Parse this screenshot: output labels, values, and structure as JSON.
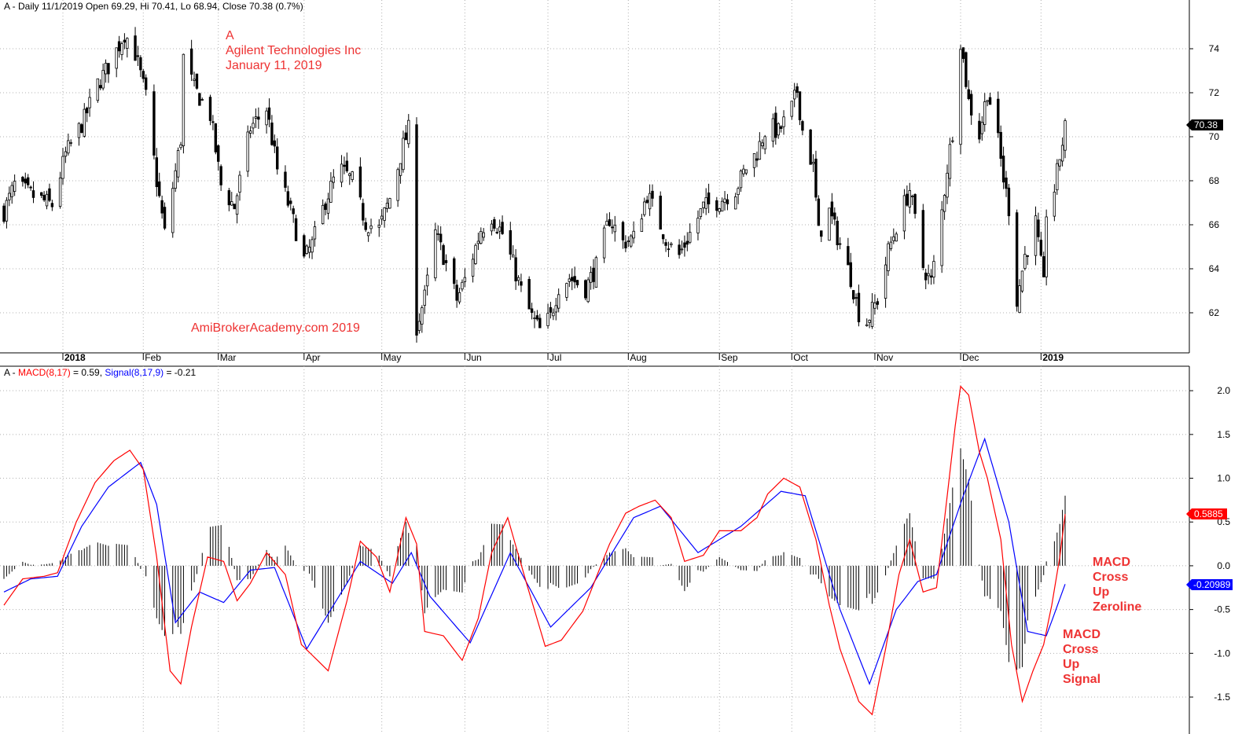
{
  "price_panel": {
    "ticker": "A",
    "header_prefix": "A - Daily 11/1/2019 Open 69.29, Hi 70.41, Lo 68.94, Close 70.38 (0.7%)",
    "annotation_lines": [
      "A",
      "Agilent Technologies Inc",
      "January 11, 2019"
    ],
    "watermark": "AmiBrokerAcademy.com  2019",
    "last_close_tag": "70.38",
    "y_ticks": [
      "74",
      "72",
      "70",
      "68",
      "66",
      "64",
      "62"
    ]
  },
  "x_axis": {
    "labels": [
      "2018",
      "Feb",
      "Mar",
      "Apr",
      "May",
      "Jun",
      "Jul",
      "Aug",
      "Sep",
      "Oct",
      "Nov",
      "Dec",
      "2019"
    ]
  },
  "macd_panel": {
    "header_prefix": "A - ",
    "macd_label": "MACD(8,17)",
    "macd_value_text": " = 0.59, ",
    "signal_label": "Signal(8,17,9)",
    "signal_value_text": " = -0.21",
    "macd_tag": "0.5885",
    "signal_tag": "-0.20989",
    "y_ticks": [
      "2.0",
      "1.5",
      "1.0",
      "0.5",
      "0.0",
      "-0.5",
      "-1.0",
      "-1.5"
    ],
    "annotation_zeroline": [
      "MACD",
      "Cross",
      "Up",
      "Zeroline"
    ],
    "annotation_signal": [
      "MACD",
      "Cross",
      "Up",
      "Signal"
    ]
  },
  "colors": {
    "macd": "#ff0000",
    "signal": "#0000ff",
    "histogram": "#000000",
    "candles": "#000000",
    "annotation": "#ee3333",
    "grid": "#b0b0b0"
  },
  "chart_data": [
    {
      "type": "candlestick",
      "title": "A - Daily 11/1/2019 Open 69.29, Hi 70.41, Lo 68.94, Close 70.38 (0.7%)",
      "x_labels": [
        "2018",
        "Feb",
        "Mar",
        "Apr",
        "May",
        "Jun",
        "Jul",
        "Aug",
        "Sep",
        "Oct",
        "Nov",
        "Dec",
        "2019"
      ],
      "ylim": [
        60.5,
        75.5
      ],
      "y_ticks": [
        62,
        64,
        66,
        68,
        70,
        72,
        74
      ],
      "x_start": "2017-12-11",
      "x_end": "2019-01-11",
      "grid": true,
      "close_path": [
        {
          "date": "2017-12-11",
          "close": 66.6
        },
        {
          "date": "2017-12-15",
          "close": 67.8
        },
        {
          "date": "2017-12-22",
          "close": 67.3
        },
        {
          "date": "2017-12-29",
          "close": 66.9
        },
        {
          "date": "2018-01-03",
          "close": 69.2
        },
        {
          "date": "2018-01-10",
          "close": 70.8
        },
        {
          "date": "2018-01-15",
          "close": 72.4
        },
        {
          "date": "2018-01-20",
          "close": 73.4
        },
        {
          "date": "2018-01-25",
          "close": 74.7
        },
        {
          "date": "2018-01-29",
          "close": 73.8
        },
        {
          "date": "2018-02-02",
          "close": 71.8
        },
        {
          "date": "2018-02-06",
          "close": 68.0
        },
        {
          "date": "2018-02-09",
          "close": 65.6
        },
        {
          "date": "2018-02-13",
          "close": 68.4
        },
        {
          "date": "2018-02-15",
          "close": 69.9
        },
        {
          "date": "2018-02-16",
          "close": 73.6
        },
        {
          "date": "2018-02-20",
          "close": 72.2
        },
        {
          "date": "2018-02-26",
          "close": 71.0
        },
        {
          "date": "2018-03-02",
          "close": 67.8
        },
        {
          "date": "2018-03-07",
          "close": 66.8
        },
        {
          "date": "2018-03-13",
          "close": 70.4
        },
        {
          "date": "2018-03-19",
          "close": 71.3
        },
        {
          "date": "2018-03-23",
          "close": 68.5
        },
        {
          "date": "2018-03-28",
          "close": 66.6
        },
        {
          "date": "2018-04-02",
          "close": 64.4
        },
        {
          "date": "2018-04-05",
          "close": 65.1
        },
        {
          "date": "2018-04-10",
          "close": 67.1
        },
        {
          "date": "2018-04-15",
          "close": 68.6
        },
        {
          "date": "2018-04-20",
          "close": 68.0
        },
        {
          "date": "2018-04-25",
          "close": 66.1
        },
        {
          "date": "2018-04-30",
          "close": 65.8
        },
        {
          "date": "2018-05-04",
          "close": 67.2
        },
        {
          "date": "2018-05-09",
          "close": 69.6
        },
        {
          "date": "2018-05-11",
          "close": 70.3
        },
        {
          "date": "2018-05-14",
          "close": 61.4
        },
        {
          "date": "2018-05-17",
          "close": 62.7
        },
        {
          "date": "2018-05-21",
          "close": 65.6
        },
        {
          "date": "2018-05-24",
          "close": 64.6
        },
        {
          "date": "2018-05-29",
          "close": 62.6
        },
        {
          "date": "2018-06-02",
          "close": 63.8
        },
        {
          "date": "2018-06-07",
          "close": 65.8
        },
        {
          "date": "2018-06-11",
          "close": 66.4
        },
        {
          "date": "2018-06-15",
          "close": 65.6
        },
        {
          "date": "2018-06-19",
          "close": 64.2
        },
        {
          "date": "2018-06-22",
          "close": 63.0
        },
        {
          "date": "2018-06-26",
          "close": 61.8
        },
        {
          "date": "2018-06-29",
          "close": 61.2
        },
        {
          "date": "2018-07-03",
          "close": 61.8
        },
        {
          "date": "2018-07-06",
          "close": 63.2
        },
        {
          "date": "2018-07-10",
          "close": 63.6
        },
        {
          "date": "2018-07-16",
          "close": 63.1
        },
        {
          "date": "2018-07-20",
          "close": 64.1
        },
        {
          "date": "2018-07-25",
          "close": 66.3
        },
        {
          "date": "2018-07-30",
          "close": 65.2
        },
        {
          "date": "2018-08-03",
          "close": 65.4
        },
        {
          "date": "2018-08-08",
          "close": 67.4
        },
        {
          "date": "2018-08-12",
          "close": 66.3
        },
        {
          "date": "2018-08-16",
          "close": 65.1
        },
        {
          "date": "2018-08-20",
          "close": 64.6
        },
        {
          "date": "2018-08-24",
          "close": 65.6
        },
        {
          "date": "2018-08-29",
          "close": 66.8
        },
        {
          "date": "2018-09-04",
          "close": 67.1
        },
        {
          "date": "2018-09-10",
          "close": 67.6
        },
        {
          "date": "2018-09-14",
          "close": 68.6
        },
        {
          "date": "2018-09-18",
          "close": 69.3
        },
        {
          "date": "2018-09-22",
          "close": 70.6
        },
        {
          "date": "2018-09-26",
          "close": 70.2
        },
        {
          "date": "2018-10-01",
          "close": 71.3
        },
        {
          "date": "2018-10-03",
          "close": 72.1
        },
        {
          "date": "2018-10-05",
          "close": 70.3
        },
        {
          "date": "2018-10-09",
          "close": 68.6
        },
        {
          "date": "2018-10-11",
          "close": 65.6
        },
        {
          "date": "2018-10-15",
          "close": 66.6
        },
        {
          "date": "2018-10-19",
          "close": 65.1
        },
        {
          "date": "2018-10-23",
          "close": 63.6
        },
        {
          "date": "2018-10-26",
          "close": 62.0
        },
        {
          "date": "2018-10-29",
          "close": 61.6
        },
        {
          "date": "2018-11-02",
          "close": 62.6
        },
        {
          "date": "2018-11-06",
          "close": 64.8
        },
        {
          "date": "2018-11-10",
          "close": 66.3
        },
        {
          "date": "2018-11-14",
          "close": 67.6
        },
        {
          "date": "2018-11-19",
          "close": 64.1
        },
        {
          "date": "2018-11-22",
          "close": 63.4
        },
        {
          "date": "2018-11-25",
          "close": 65.6
        },
        {
          "date": "2018-11-28",
          "close": 68.6
        },
        {
          "date": "2018-12-01",
          "close": 71.1
        },
        {
          "date": "2018-12-03",
          "close": 74.4
        },
        {
          "date": "2018-12-06",
          "close": 71.6
        },
        {
          "date": "2018-12-10",
          "close": 70.1
        },
        {
          "date": "2018-12-13",
          "close": 72.1
        },
        {
          "date": "2018-12-16",
          "close": 70.6
        },
        {
          "date": "2018-12-19",
          "close": 68.1
        },
        {
          "date": "2018-12-22",
          "close": 66.1
        },
        {
          "date": "2018-12-24",
          "close": 62.6
        },
        {
          "date": "2018-12-27",
          "close": 64.6
        },
        {
          "date": "2018-12-31",
          "close": 66.1
        },
        {
          "date": "2019-01-03",
          "close": 63.2
        },
        {
          "date": "2019-01-04",
          "close": 66.6
        },
        {
          "date": "2019-01-07",
          "close": 67.6
        },
        {
          "date": "2019-01-09",
          "close": 69.1
        },
        {
          "date": "2019-01-11",
          "close": 70.38
        }
      ]
    },
    {
      "type": "line",
      "title": "A - MACD(8,17) = 0.59, Signal(8,17,9) = -0.21",
      "x_labels": [
        "2018",
        "Feb",
        "Mar",
        "Apr",
        "May",
        "Jun",
        "Jul",
        "Aug",
        "Sep",
        "Oct",
        "Nov",
        "Dec",
        "2019"
      ],
      "ylim": [
        -1.85,
        2.1
      ],
      "y_ticks": [
        -1.5,
        -1.0,
        -0.5,
        0.0,
        0.5,
        1.0,
        1.5,
        2.0
      ],
      "grid": true,
      "series": [
        {
          "name": "MACD(8,17)",
          "color": "#ff0000",
          "points": [
            [
              "2017-12-11",
              -0.45
            ],
            [
              "2017-12-18",
              -0.15
            ],
            [
              "2017-12-26",
              -0.12
            ],
            [
              "2017-12-31",
              -0.08
            ],
            [
              "2018-01-07",
              0.5
            ],
            [
              "2018-01-14",
              0.95
            ],
            [
              "2018-01-21",
              1.2
            ],
            [
              "2018-01-27",
              1.32
            ],
            [
              "2018-02-01",
              1.1
            ],
            [
              "2018-02-06",
              0.1
            ],
            [
              "2018-02-11",
              -1.2
            ],
            [
              "2018-02-15",
              -1.35
            ],
            [
              "2018-02-19",
              -0.7
            ],
            [
              "2018-02-25",
              0.1
            ],
            [
              "2018-03-03",
              0.05
            ],
            [
              "2018-03-08",
              -0.4
            ],
            [
              "2018-03-13",
              -0.2
            ],
            [
              "2018-03-19",
              0.15
            ],
            [
              "2018-03-26",
              -0.1
            ],
            [
              "2018-04-01",
              -0.9
            ],
            [
              "2018-04-06",
              -1.05
            ],
            [
              "2018-04-11",
              -1.2
            ],
            [
              "2018-04-18",
              -0.4
            ],
            [
              "2018-04-23",
              0.28
            ],
            [
              "2018-04-29",
              0.1
            ],
            [
              "2018-05-04",
              -0.3
            ],
            [
              "2018-05-10",
              0.55
            ],
            [
              "2018-05-14",
              0.25
            ],
            [
              "2018-05-17",
              -0.75
            ],
            [
              "2018-05-24",
              -0.8
            ],
            [
              "2018-05-31",
              -1.08
            ],
            [
              "2018-06-06",
              -0.6
            ],
            [
              "2018-06-11",
              0.15
            ],
            [
              "2018-06-17",
              0.55
            ],
            [
              "2018-06-24",
              -0.2
            ],
            [
              "2018-07-01",
              -0.92
            ],
            [
              "2018-07-07",
              -0.85
            ],
            [
              "2018-07-15",
              -0.52
            ],
            [
              "2018-07-25",
              0.25
            ],
            [
              "2018-07-31",
              0.6
            ],
            [
              "2018-08-05",
              0.68
            ],
            [
              "2018-08-11",
              0.75
            ],
            [
              "2018-08-17",
              0.55
            ],
            [
              "2018-08-22",
              0.05
            ],
            [
              "2018-08-29",
              0.12
            ],
            [
              "2018-09-04",
              0.4
            ],
            [
              "2018-09-12",
              0.4
            ],
            [
              "2018-09-18",
              0.55
            ],
            [
              "2018-09-22",
              0.82
            ],
            [
              "2018-09-28",
              1.0
            ],
            [
              "2018-10-04",
              0.9
            ],
            [
              "2018-10-10",
              0.3
            ],
            [
              "2018-10-15",
              -0.45
            ],
            [
              "2018-10-19",
              -0.95
            ],
            [
              "2018-10-26",
              -1.55
            ],
            [
              "2018-10-31",
              -1.7
            ],
            [
              "2018-11-05",
              -0.95
            ],
            [
              "2018-11-10",
              -0.1
            ],
            [
              "2018-11-14",
              0.3
            ],
            [
              "2018-11-19",
              -0.3
            ],
            [
              "2018-11-24",
              -0.25
            ],
            [
              "2018-11-28",
              0.8
            ],
            [
              "2018-12-01",
              1.6
            ],
            [
              "2018-12-03",
              2.05
            ],
            [
              "2018-12-06",
              1.95
            ],
            [
              "2018-12-10",
              1.3
            ],
            [
              "2018-12-13",
              1.0
            ],
            [
              "2018-12-18",
              0.3
            ],
            [
              "2018-12-22",
              -0.9
            ],
            [
              "2018-12-26",
              -1.55
            ],
            [
              "2018-12-30",
              -1.2
            ],
            [
              "2019-01-03",
              -0.9
            ],
            [
              "2019-01-06",
              -0.45
            ],
            [
              "2019-01-09",
              0.1
            ],
            [
              "2019-01-11",
              0.59
            ]
          ]
        },
        {
          "name": "Signal(8,17,9)",
          "color": "#0000ff",
          "points": [
            [
              "2017-12-11",
              -0.3
            ],
            [
              "2017-12-21",
              -0.15
            ],
            [
              "2017-12-31",
              -0.12
            ],
            [
              "2018-01-09",
              0.45
            ],
            [
              "2018-01-19",
              0.9
            ],
            [
              "2018-01-31",
              1.18
            ],
            [
              "2018-02-06",
              0.7
            ],
            [
              "2018-02-13",
              -0.65
            ],
            [
              "2018-02-22",
              -0.3
            ],
            [
              "2018-03-03",
              -0.42
            ],
            [
              "2018-03-13",
              -0.05
            ],
            [
              "2018-03-22",
              -0.02
            ],
            [
              "2018-04-03",
              -0.95
            ],
            [
              "2018-04-14",
              -0.4
            ],
            [
              "2018-04-23",
              0.05
            ],
            [
              "2018-05-05",
              -0.2
            ],
            [
              "2018-05-12",
              0.15
            ],
            [
              "2018-05-19",
              -0.35
            ],
            [
              "2018-06-03",
              -0.88
            ],
            [
              "2018-06-18",
              0.15
            ],
            [
              "2018-07-03",
              -0.7
            ],
            [
              "2018-07-18",
              -0.25
            ],
            [
              "2018-08-03",
              0.55
            ],
            [
              "2018-08-13",
              0.68
            ],
            [
              "2018-08-27",
              0.15
            ],
            [
              "2018-09-12",
              0.45
            ],
            [
              "2018-09-27",
              0.85
            ],
            [
              "2018-10-06",
              0.8
            ],
            [
              "2018-10-19",
              -0.5
            ],
            [
              "2018-10-30",
              -1.35
            ],
            [
              "2018-11-09",
              -0.5
            ],
            [
              "2018-11-17",
              -0.18
            ],
            [
              "2018-11-24",
              -0.1
            ],
            [
              "2018-12-04",
              0.8
            ],
            [
              "2018-12-12",
              1.45
            ],
            [
              "2018-12-21",
              0.5
            ],
            [
              "2018-12-28",
              -0.75
            ],
            [
              "2019-01-04",
              -0.8
            ],
            [
              "2019-01-11",
              -0.21
            ]
          ]
        }
      ]
    }
  ]
}
